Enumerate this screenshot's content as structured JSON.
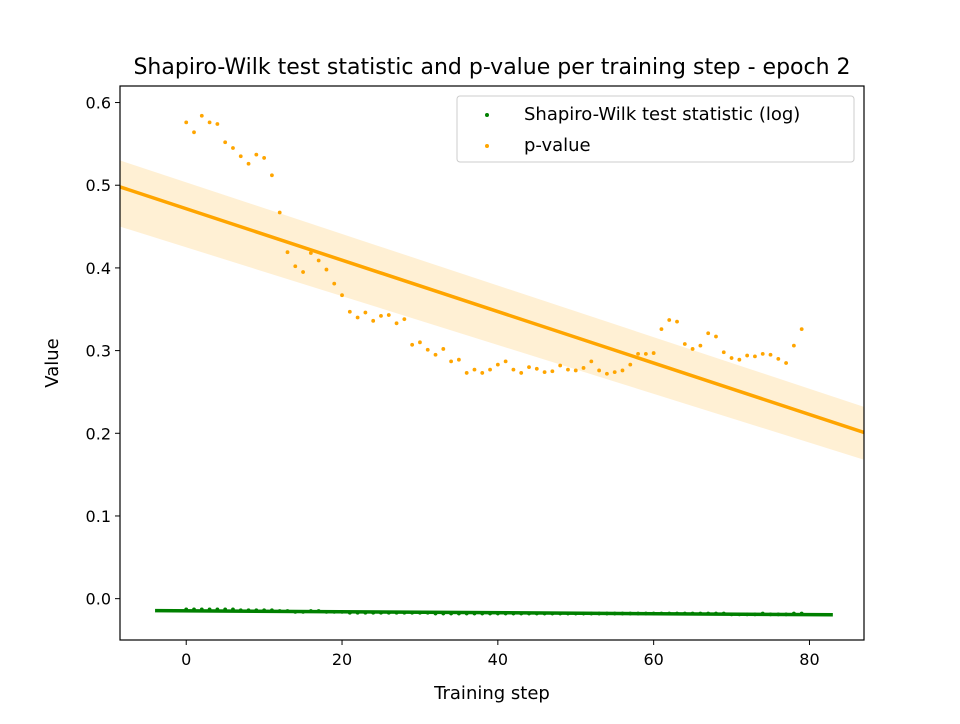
{
  "chart_data": {
    "type": "scatter",
    "title": "Shapiro-Wilk test statistic and p-value per training step - epoch 2",
    "xlabel": "Training step",
    "ylabel": "Value",
    "xlim": [
      -8.5,
      87
    ],
    "ylim": [
      -0.05,
      0.62
    ],
    "xticks": [
      0,
      20,
      40,
      60,
      80
    ],
    "yticks": [
      0.0,
      0.1,
      0.2,
      0.3,
      0.4,
      0.5,
      0.6
    ],
    "legend_position": "top-right",
    "grid": false,
    "series": [
      {
        "name": "Shapiro-Wilk test statistic (log)",
        "color": "#008000",
        "x": [
          0,
          1,
          2,
          3,
          4,
          5,
          6,
          7,
          8,
          9,
          10,
          11,
          12,
          13,
          14,
          15,
          16,
          17,
          18,
          19,
          20,
          21,
          22,
          23,
          24,
          25,
          26,
          27,
          28,
          29,
          30,
          31,
          32,
          33,
          34,
          35,
          36,
          37,
          38,
          39,
          40,
          41,
          42,
          43,
          44,
          45,
          46,
          47,
          48,
          49,
          50,
          51,
          52,
          53,
          54,
          55,
          56,
          57,
          58,
          59,
          60,
          61,
          62,
          63,
          64,
          65,
          66,
          67,
          68,
          69,
          70,
          71,
          72,
          73,
          74,
          75,
          76,
          77,
          78,
          79
        ],
        "y": [
          -0.013,
          -0.013,
          -0.013,
          -0.013,
          -0.013,
          -0.013,
          -0.013,
          -0.014,
          -0.014,
          -0.014,
          -0.014,
          -0.014,
          -0.015,
          -0.015,
          -0.016,
          -0.016,
          -0.015,
          -0.015,
          -0.016,
          -0.016,
          -0.016,
          -0.017,
          -0.017,
          -0.017,
          -0.017,
          -0.017,
          -0.017,
          -0.017,
          -0.017,
          -0.017,
          -0.017,
          -0.017,
          -0.018,
          -0.018,
          -0.018,
          -0.018,
          -0.018,
          -0.018,
          -0.018,
          -0.018,
          -0.018,
          -0.018,
          -0.018,
          -0.018,
          -0.018,
          -0.018,
          -0.018,
          -0.018,
          -0.018,
          -0.018,
          -0.018,
          -0.018,
          -0.018,
          -0.018,
          -0.018,
          -0.018,
          -0.018,
          -0.018,
          -0.018,
          -0.018,
          -0.018,
          -0.018,
          -0.018,
          -0.018,
          -0.018,
          -0.018,
          -0.018,
          -0.018,
          -0.018,
          -0.018,
          -0.019,
          -0.019,
          -0.019,
          -0.019,
          -0.018,
          -0.019,
          -0.019,
          -0.019,
          -0.018,
          -0.018
        ]
      },
      {
        "name": "p-value",
        "color": "#ffa500",
        "x": [
          0,
          1,
          2,
          3,
          4,
          5,
          6,
          7,
          8,
          9,
          10,
          11,
          12,
          13,
          14,
          15,
          16,
          17,
          18,
          19,
          20,
          21,
          22,
          23,
          24,
          25,
          26,
          27,
          28,
          29,
          30,
          31,
          32,
          33,
          34,
          35,
          36,
          37,
          38,
          39,
          40,
          41,
          42,
          43,
          44,
          45,
          46,
          47,
          48,
          49,
          50,
          51,
          52,
          53,
          54,
          55,
          56,
          57,
          58,
          59,
          60,
          61,
          62,
          63,
          64,
          65,
          66,
          67,
          68,
          69,
          70,
          71,
          72,
          73,
          74,
          75,
          76,
          77,
          78,
          79
        ],
        "y": [
          0.576,
          0.564,
          0.584,
          0.576,
          0.574,
          0.552,
          0.545,
          0.535,
          0.526,
          0.537,
          0.533,
          0.512,
          0.467,
          0.419,
          0.402,
          0.395,
          0.418,
          0.409,
          0.398,
          0.381,
          0.367,
          0.347,
          0.34,
          0.346,
          0.336,
          0.342,
          0.343,
          0.333,
          0.338,
          0.307,
          0.31,
          0.301,
          0.295,
          0.302,
          0.287,
          0.289,
          0.273,
          0.277,
          0.273,
          0.277,
          0.283,
          0.287,
          0.277,
          0.273,
          0.28,
          0.278,
          0.274,
          0.275,
          0.282,
          0.277,
          0.276,
          0.279,
          0.287,
          0.276,
          0.272,
          0.274,
          0.276,
          0.283,
          0.296,
          0.296,
          0.297,
          0.326,
          0.337,
          0.335,
          0.308,
          0.302,
          0.306,
          0.321,
          0.317,
          0.298,
          0.291,
          0.289,
          0.294,
          0.293,
          0.296,
          0.295,
          0.29,
          0.285,
          0.306,
          0.326
        ]
      }
    ],
    "regression_lines": [
      {
        "series": "p-value",
        "color": "#ffa500",
        "x": [
          -8.5,
          87
        ],
        "y": [
          0.498,
          0.201
        ],
        "ci_lower": [
          0.45,
          0.168
        ],
        "ci_upper": [
          0.53,
          0.232
        ]
      },
      {
        "series": "Shapiro-Wilk test statistic (log)",
        "color": "#008000",
        "x": [
          -4,
          83
        ],
        "y": [
          -0.0145,
          -0.0195
        ]
      }
    ]
  }
}
